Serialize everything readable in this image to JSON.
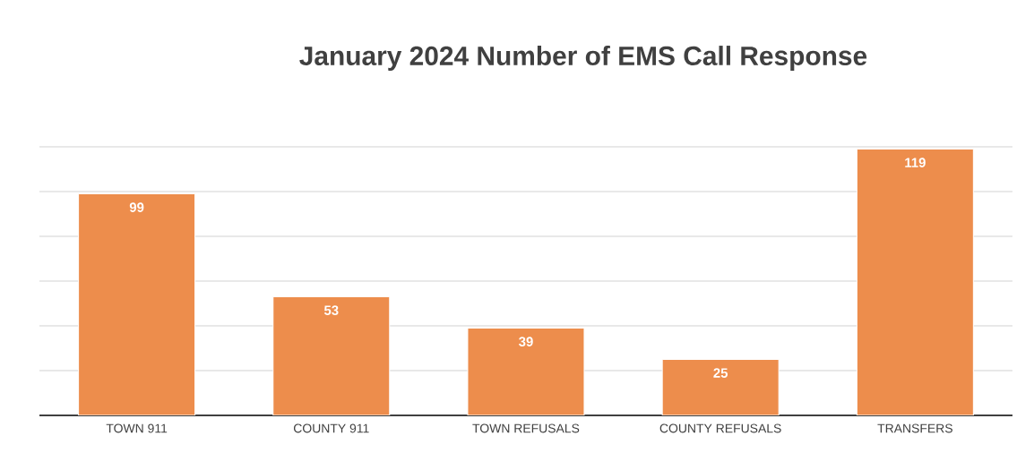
{
  "chart_data": {
    "type": "bar",
    "title": "January 2024 Number of EMS Call Response",
    "categories": [
      "TOWN 911",
      "COUNTY 911",
      "TOWN REFUSALS",
      "COUNTY REFUSALS",
      "TRANSFERS"
    ],
    "values": [
      99,
      53,
      39,
      25,
      119
    ],
    "color": "#ed8d4c",
    "ylim": [
      0,
      120
    ],
    "grid": "y",
    "data_labels": true,
    "tick_labels": "x"
  }
}
